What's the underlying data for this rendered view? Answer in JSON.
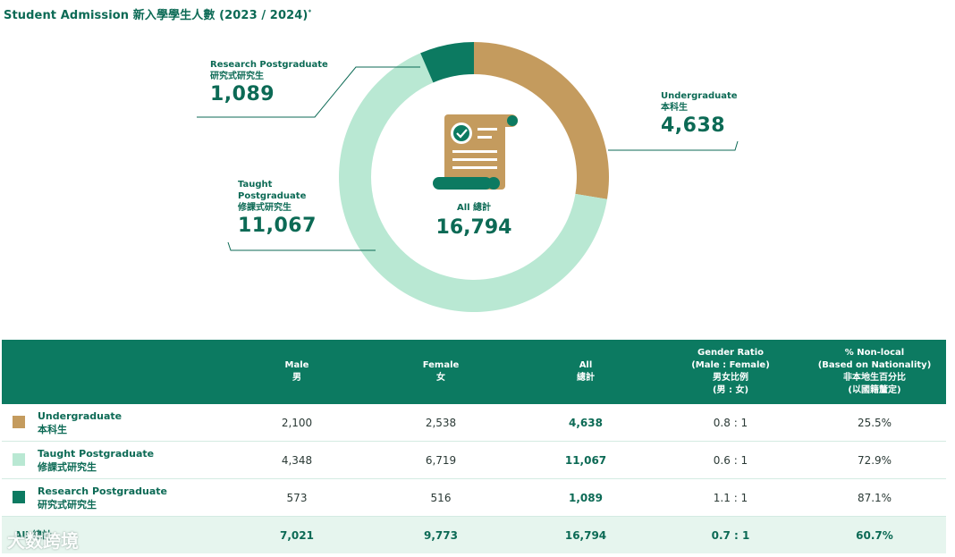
{
  "title": "Student Admission 新入學學生人數 (2023 / 2024)",
  "title_mark": "*",
  "chart_data": {
    "type": "pie",
    "categories": [
      "Undergraduate",
      "Taught Postgraduate",
      "Research Postgraduate"
    ],
    "values": [
      4638,
      11067,
      1089
    ],
    "colors": [
      "#c49b5e",
      "#b9e8d3",
      "#0c7a61"
    ],
    "total_label": "All 總計",
    "total_value": "16,794"
  },
  "labels": {
    "research": {
      "en": "Research Postgraduate",
      "zh": "研究式研究生",
      "value": "1,089"
    },
    "undergrad": {
      "en": "Undergraduate",
      "zh": "本科生",
      "value": "4,638"
    },
    "taught": {
      "en1": "Taught",
      "en2": "Postgraduate",
      "zh": "修課式研究生",
      "value": "11,067"
    }
  },
  "table": {
    "headers": {
      "male": {
        "en": "Male",
        "zh": "男"
      },
      "female": {
        "en": "Female",
        "zh": "女"
      },
      "all": {
        "en": "All",
        "zh": "總計"
      },
      "ratio": {
        "en1": "Gender Ratio",
        "en2": "(Male : Female)",
        "zh1": "男女比例",
        "zh2": "(男 : 女)"
      },
      "nonlocal": {
        "en1": "% Non-local",
        "en2": "(Based on Nationality)",
        "zh1": "非本地生百分比",
        "zh2": "(以國籍釐定)"
      }
    },
    "rows": [
      {
        "en": "Undergraduate",
        "zh": "本科生",
        "color": "#c49b5e",
        "male": "2,100",
        "female": "2,538",
        "all": "4,638",
        "ratio": "0.8 : 1",
        "nonlocal": "25.5%"
      },
      {
        "en": "Taught Postgraduate",
        "zh": "修課式研究生",
        "color": "#b9e8d3",
        "male": "4,348",
        "female": "6,719",
        "all": "11,067",
        "ratio": "0.6 : 1",
        "nonlocal": "72.9%"
      },
      {
        "en": "Research Postgraduate",
        "zh": "研究式研究生",
        "color": "#0c7a61",
        "male": "573",
        "female": "516",
        "all": "1,089",
        "ratio": "1.1 : 1",
        "nonlocal": "87.1%"
      }
    ],
    "total": {
      "label": "All 總計",
      "male": "7,021",
      "female": "9,773",
      "all": "16,794",
      "ratio": "0.7 : 1",
      "nonlocal": "60.7%"
    }
  },
  "watermark": "大数跨境"
}
